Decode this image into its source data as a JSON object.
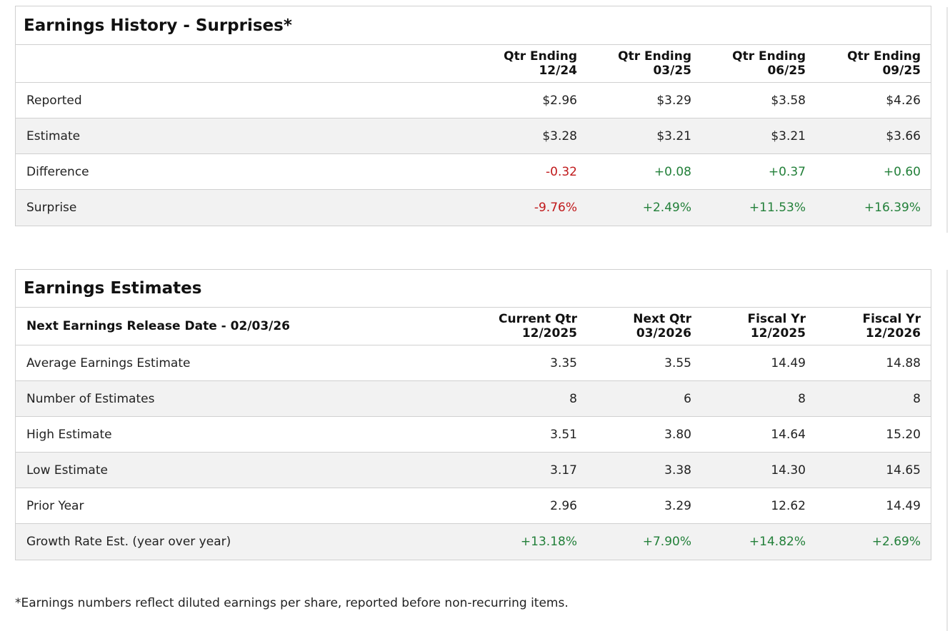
{
  "colors": {
    "negative": "#c0191b",
    "positive": "#23803a",
    "stripe": "#f2f2f2",
    "border": "#d0d0d0"
  },
  "history": {
    "title": "Earnings History - Surprises*",
    "columns": [
      {
        "line1": "Qtr Ending",
        "line2": "12/24"
      },
      {
        "line1": "Qtr Ending",
        "line2": "03/25"
      },
      {
        "line1": "Qtr Ending",
        "line2": "06/25"
      },
      {
        "line1": "Qtr Ending",
        "line2": "09/25"
      }
    ],
    "rows": [
      {
        "label": "Reported",
        "values": [
          "$2.96",
          "$3.29",
          "$3.58",
          "$4.26"
        ]
      },
      {
        "label": "Estimate",
        "values": [
          "$3.28",
          "$3.21",
          "$3.21",
          "$3.66"
        ]
      },
      {
        "label": "Difference",
        "values": [
          "-0.32",
          "+0.08",
          "+0.37",
          "+0.60"
        ]
      },
      {
        "label": "Surprise",
        "values": [
          "-9.76%",
          "+2.49%",
          "+11.53%",
          "+16.39%"
        ]
      }
    ]
  },
  "estimates": {
    "title": "Earnings Estimates",
    "release_label": "Next Earnings Release Date - 02/03/26",
    "columns": [
      {
        "line1": "Current Qtr",
        "line2": "12/2025"
      },
      {
        "line1": "Next Qtr",
        "line2": "03/2026"
      },
      {
        "line1": "Fiscal Yr",
        "line2": "12/2025"
      },
      {
        "line1": "Fiscal Yr",
        "line2": "12/2026"
      }
    ],
    "rows": [
      {
        "label": "Average Earnings Estimate",
        "values": [
          "3.35",
          "3.55",
          "14.49",
          "14.88"
        ]
      },
      {
        "label": "Number of Estimates",
        "values": [
          "8",
          "6",
          "8",
          "8"
        ]
      },
      {
        "label": "High Estimate",
        "values": [
          "3.51",
          "3.80",
          "14.64",
          "15.20"
        ]
      },
      {
        "label": "Low Estimate",
        "values": [
          "3.17",
          "3.38",
          "14.30",
          "14.65"
        ]
      },
      {
        "label": "Prior Year",
        "values": [
          "2.96",
          "3.29",
          "12.62",
          "14.49"
        ]
      },
      {
        "label": "Growth Rate Est. (year over year)",
        "values": [
          "+13.18%",
          "+7.90%",
          "+14.82%",
          "+2.69%"
        ]
      }
    ]
  },
  "footnote": "*Earnings numbers reflect diluted earnings per share, reported before non-recurring items."
}
